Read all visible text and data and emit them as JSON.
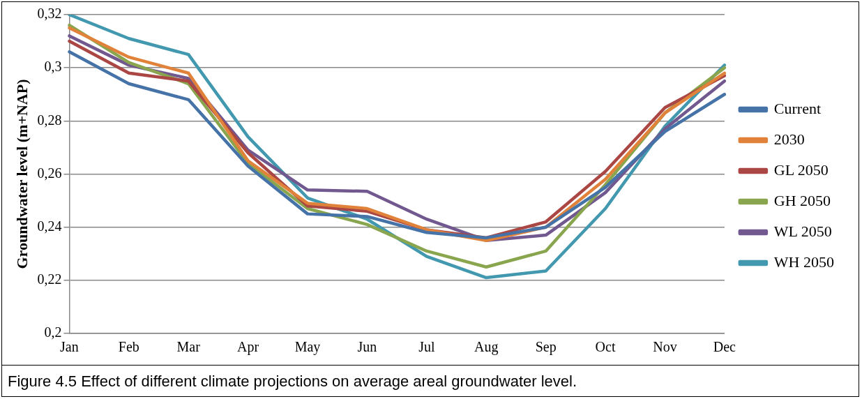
{
  "chart_data": {
    "type": "line",
    "ylabel": "Groundwater level (m+NAP)",
    "categories": [
      "Jan",
      "Feb",
      "Mar",
      "Apr",
      "May",
      "Jun",
      "Jul",
      "Aug",
      "Sep",
      "Oct",
      "Nov",
      "Dec"
    ],
    "series": [
      {
        "name": "Current",
        "color": "#4572a7",
        "values": [
          0.306,
          0.294,
          0.288,
          0.263,
          0.245,
          0.244,
          0.238,
          0.236,
          0.24,
          0.255,
          0.276,
          0.29
        ]
      },
      {
        "name": "2030",
        "color": "#e0823a",
        "values": [
          0.315,
          0.304,
          0.298,
          0.265,
          0.249,
          0.247,
          0.239,
          0.235,
          0.24,
          0.258,
          0.283,
          0.298
        ]
      },
      {
        "name": "GL 2050",
        "color": "#aa4643",
        "values": [
          0.31,
          0.298,
          0.295,
          0.268,
          0.248,
          0.246,
          0.239,
          0.236,
          0.242,
          0.261,
          0.285,
          0.297
        ]
      },
      {
        "name": "GH 2050",
        "color": "#89a54e",
        "values": [
          0.316,
          0.302,
          0.294,
          0.264,
          0.247,
          0.241,
          0.231,
          0.225,
          0.231,
          0.256,
          0.283,
          0.3
        ]
      },
      {
        "name": "WL 2050",
        "color": "#71588f",
        "values": [
          0.312,
          0.301,
          0.296,
          0.269,
          0.254,
          0.2535,
          0.243,
          0.235,
          0.237,
          0.253,
          0.277,
          0.295
        ]
      },
      {
        "name": "WH 2050",
        "color": "#4198af",
        "values": [
          0.32,
          0.311,
          0.305,
          0.274,
          0.251,
          0.243,
          0.229,
          0.221,
          0.2235,
          0.247,
          0.278,
          0.301
        ]
      }
    ],
    "ylim": [
      0.2,
      0.32
    ],
    "yticks": [
      {
        "value": 0.2,
        "label": "0,2"
      },
      {
        "value": 0.22,
        "label": "0,22"
      },
      {
        "value": 0.24,
        "label": "0,24"
      },
      {
        "value": 0.26,
        "label": "0,26"
      },
      {
        "value": 0.28,
        "label": "0,28"
      },
      {
        "value": 0.3,
        "label": "0,3"
      },
      {
        "value": 0.32,
        "label": "0,32"
      }
    ],
    "grid": "y",
    "legend": "right",
    "marker": "none",
    "line_style": "solid",
    "annotations": [
      "Figure 4.5 Effect of different climate projections on average areal groundwater level."
    ]
  }
}
